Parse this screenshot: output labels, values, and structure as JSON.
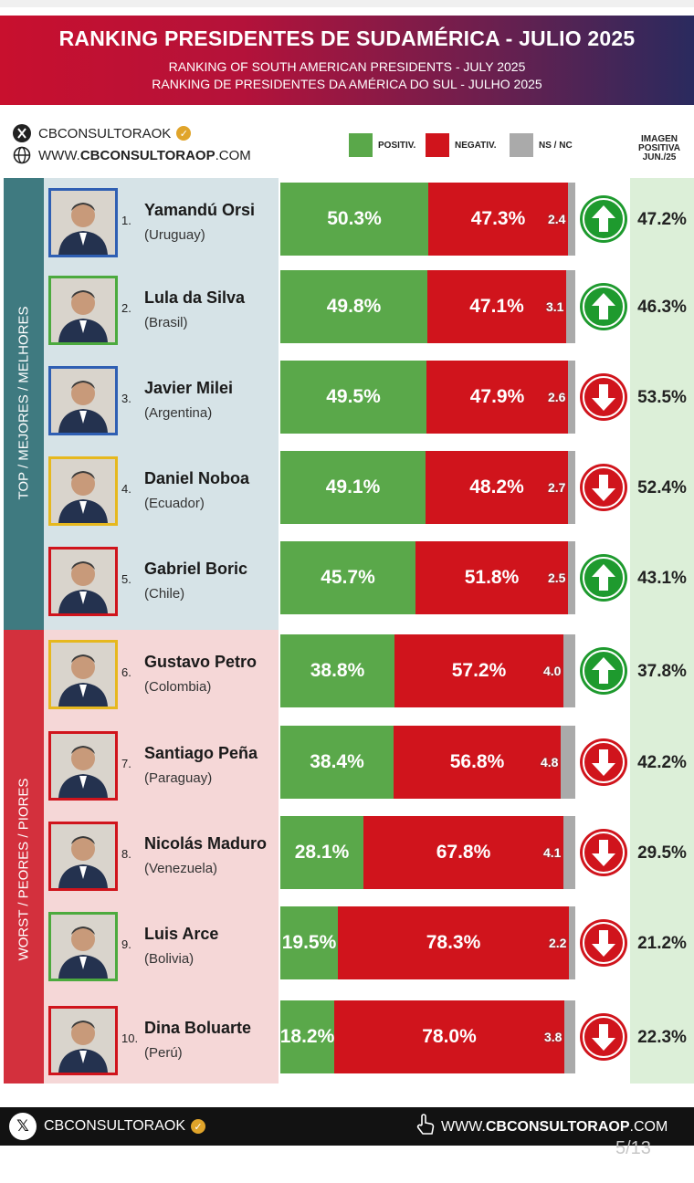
{
  "header": {
    "title": "RANKING PRESIDENTES DE SUDAMÉRICA - JULIO 2025",
    "subtitle_en": "RANKING OF SOUTH AMERICAN PRESIDENTS -   JULY 2025",
    "subtitle_pt": "RANKING DE PRESIDENTES DA AMÉRICA DO SUL - JULHO 2025"
  },
  "brand": {
    "handle": "CBCONSULTORAOK",
    "website_prefix": "WWW.",
    "website_bold": "CBCONSULTORAOP",
    "website_suffix": ".COM"
  },
  "legend": {
    "positive": "POSITIV.",
    "negative": "NEGATIV.",
    "ns": "NS / NC"
  },
  "previous_header": [
    "IMAGEN",
    "POSITIVA",
    "JUN./25"
  ],
  "groups": {
    "top": "TOP / MEJORES / MELHORES",
    "worst": "WORST / PEORES / PIORES"
  },
  "colors": {
    "positive": "#5aa84a",
    "negative": "#d0141c",
    "ns": "#aaaaaa",
    "arrow_up": "#1e9a2e",
    "arrow_down": "#d0141c"
  },
  "chart_data": {
    "type": "bar",
    "stacked": true,
    "orientation": "horizontal",
    "title": "RANKING PRESIDENTES DE SUDAMÉRICA - JULIO 2025",
    "series_names": [
      "POSITIV.",
      "NEGATIV.",
      "NS / NC"
    ],
    "rows": [
      {
        "rank": "1.",
        "name": "Yamandú Orsi",
        "country": "(Uruguay)",
        "positive": 50.3,
        "negative": 47.3,
        "ns": 2.4,
        "ns_label": "2.4",
        "trend": "up",
        "previous": "47.2%",
        "frame": "#2f5fb3"
      },
      {
        "rank": "2.",
        "name": "Lula da Silva",
        "country": "(Brasil)",
        "positive": 49.8,
        "negative": 47.1,
        "ns": 3.1,
        "ns_label": "3.1",
        "trend": "up",
        "previous": "46.3%",
        "frame": "#4caa3e"
      },
      {
        "rank": "3.",
        "name": "Javier Milei",
        "country": "(Argentina)",
        "positive": 49.5,
        "negative": 47.9,
        "ns": 2.6,
        "ns_label": "2.6",
        "trend": "down",
        "previous": "53.5%",
        "frame": "#2f5fb3"
      },
      {
        "rank": "4.",
        "name": "Daniel Noboa",
        "country": "(Ecuador)",
        "positive": 49.1,
        "negative": 48.2,
        "ns": 2.7,
        "ns_label": "2.7",
        "trend": "down",
        "previous": "52.4%",
        "frame": "#e6b81e"
      },
      {
        "rank": "5.",
        "name": "Gabriel Boric",
        "country": "(Chile)",
        "positive": 45.7,
        "negative": 51.8,
        "ns": 2.5,
        "ns_label": "2.5",
        "trend": "up",
        "previous": "43.1%",
        "frame": "#d0141c"
      },
      {
        "rank": "6.",
        "name": "Gustavo Petro",
        "country": "(Colombia)",
        "positive": 38.8,
        "negative": 57.2,
        "ns": 4.0,
        "ns_label": "4.0",
        "trend": "up",
        "previous": "37.8%",
        "frame": "#e6b81e"
      },
      {
        "rank": "7.",
        "name": "Santiago Peña",
        "country": "(Paraguay)",
        "positive": 38.4,
        "negative": 56.8,
        "ns": 4.8,
        "ns_label": "4.8",
        "trend": "down",
        "previous": "42.2%",
        "frame": "#d0141c"
      },
      {
        "rank": "8.",
        "name": "Nicolás Maduro",
        "country": "(Venezuela)",
        "positive": 28.1,
        "negative": 67.8,
        "ns": 4.1,
        "ns_label": "4.1",
        "trend": "down",
        "previous": "29.5%",
        "frame": "#d0141c"
      },
      {
        "rank": "9.",
        "name": "Luis Arce",
        "country": "(Bolivia)",
        "positive": 19.5,
        "negative": 78.3,
        "ns": 2.2,
        "ns_label": "2.2",
        "trend": "down",
        "previous": "21.2%",
        "frame": "#4caa3e"
      },
      {
        "rank": "10.",
        "name": "Dina Boluarte",
        "country": "(Perú)",
        "positive": 18.2,
        "negative": 78.0,
        "ns": 3.8,
        "ns_label": "3.8",
        "trend": "down",
        "previous": "22.3%",
        "frame": "#d0141c"
      }
    ]
  },
  "pager": "5/13"
}
